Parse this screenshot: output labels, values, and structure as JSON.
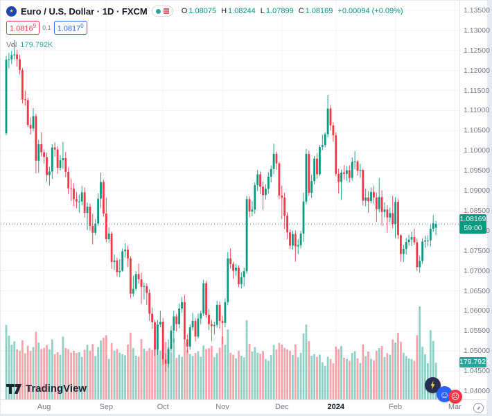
{
  "header": {
    "symbol_title": "Euro / U.S. Dollar · 1D · FXCM",
    "o_label": "O",
    "o": "1.08075",
    "h_label": "H",
    "h": "1.08244",
    "l_label": "L",
    "l": "1.07899",
    "c_label": "C",
    "c": "1.08169",
    "change": "+0.00094 (+0.09%)",
    "bid": "1.0816",
    "bid_sup": "9",
    "spread": "0.1",
    "ask": "1.0817",
    "ask_sup": "0",
    "vol_label": "Vol",
    "vol_value": "179.792K"
  },
  "price_line": {
    "value": "1.08169",
    "countdown": "59:00"
  },
  "volume_tag": {
    "label": "179.792K"
  },
  "logo": {
    "text": "TradingView"
  },
  "colors": {
    "up": "#089981",
    "down": "#f23645",
    "vol_up": "rgba(8,153,129,0.45)",
    "vol_down": "rgba(242,54,69,0.45)",
    "grid": "#f0f3fa",
    "axis_text": "#787b86",
    "accent_blue": "#2962ff"
  },
  "price_scale": {
    "labels": [
      "1.13500",
      "1.13000",
      "1.12500",
      "1.12000",
      "1.11500",
      "1.11000",
      "1.10500",
      "1.10000",
      "1.09500",
      "1.09000",
      "1.08500",
      "1.08000",
      "1.07500",
      "1.07000",
      "1.06500",
      "1.06000",
      "1.05500",
      "1.05000",
      "1.04500",
      "1.04000"
    ]
  },
  "time_scale": {
    "labels": [
      {
        "text": "Aug",
        "index": 14,
        "major": false
      },
      {
        "text": "Sep",
        "index": 37,
        "major": false
      },
      {
        "text": "Oct",
        "index": 58,
        "major": false
      },
      {
        "text": "Nov",
        "index": 80,
        "major": false
      },
      {
        "text": "Dec",
        "index": 102,
        "major": false
      },
      {
        "text": "2024",
        "index": 122,
        "major": true
      },
      {
        "text": "Feb",
        "index": 144,
        "major": false
      },
      {
        "text": "Mar",
        "index": 166,
        "major": false
      }
    ]
  },
  "chart_data": {
    "type": "candlestick",
    "symbol": "Euro / U.S. Dollar",
    "interval": "1D",
    "exchange": "FXCM",
    "title": "Euro / U.S. Dollar · 1D · FXCM",
    "y_range": [
      1.04,
      1.135
    ],
    "grid": true,
    "last_close": 1.08169,
    "volume_unit": "K",
    "bars_format": [
      "open",
      "high",
      "low",
      "close",
      "volume_K"
    ],
    "bars": [
      [
        1.1043,
        1.1236,
        1.1038,
        1.1227,
        365
      ],
      [
        1.1227,
        1.1244,
        1.1205,
        1.1228,
        312
      ],
      [
        1.1228,
        1.1249,
        1.1216,
        1.1238,
        268
      ],
      [
        1.1238,
        1.1276,
        1.1228,
        1.124,
        284
      ],
      [
        1.124,
        1.1252,
        1.121,
        1.1228,
        245
      ],
      [
        1.1228,
        1.124,
        1.119,
        1.1201,
        238
      ],
      [
        1.1201,
        1.1206,
        1.1118,
        1.1128,
        289
      ],
      [
        1.1128,
        1.115,
        1.1112,
        1.1126,
        226
      ],
      [
        1.1126,
        1.1132,
        1.1059,
        1.1064,
        263
      ],
      [
        1.1064,
        1.1083,
        1.104,
        1.1055,
        237
      ],
      [
        1.1055,
        1.1106,
        1.1048,
        1.1086,
        256
      ],
      [
        1.1086,
        1.1092,
        1.0943,
        1.0975,
        331
      ],
      [
        1.0975,
        1.1027,
        1.0944,
        1.1016,
        278
      ],
      [
        1.1016,
        1.1046,
        1.0985,
        1.0996,
        247
      ],
      [
        1.0996,
        1.1003,
        1.0967,
        1.0984,
        252
      ],
      [
        1.0984,
        1.0995,
        1.0923,
        1.0939,
        266
      ],
      [
        1.0939,
        1.096,
        1.0913,
        1.0948,
        244
      ],
      [
        1.0948,
        1.1016,
        1.093,
        1.1008,
        294
      ],
      [
        1.1008,
        1.1021,
        1.0985,
        1.1003,
        222
      ],
      [
        1.1003,
        1.1011,
        1.0942,
        1.0957,
        231
      ],
      [
        1.0957,
        1.0989,
        1.095,
        1.0976,
        219
      ],
      [
        1.0976,
        1.1021,
        1.0955,
        1.0981,
        308
      ],
      [
        1.0981,
        1.0997,
        1.0934,
        1.0947,
        251
      ],
      [
        1.0947,
        1.0958,
        1.0891,
        1.0906,
        246
      ],
      [
        1.0906,
        1.093,
        1.0874,
        1.0905,
        229
      ],
      [
        1.0905,
        1.0918,
        1.0862,
        1.0879,
        238
      ],
      [
        1.0879,
        1.0897,
        1.0856,
        1.0873,
        227
      ],
      [
        1.0873,
        1.089,
        1.0845,
        1.0873,
        231
      ],
      [
        1.0873,
        1.0912,
        1.0863,
        1.0896,
        208
      ],
      [
        1.0896,
        1.0908,
        1.0833,
        1.0845,
        243
      ],
      [
        1.0845,
        1.0871,
        1.0802,
        1.086,
        267
      ],
      [
        1.086,
        1.0868,
        1.08,
        1.0812,
        238
      ],
      [
        1.0812,
        1.0842,
        1.0766,
        1.0795,
        270
      ],
      [
        1.0795,
        1.0829,
        1.0789,
        1.0818,
        212
      ],
      [
        1.0818,
        1.0893,
        1.0812,
        1.088,
        256
      ],
      [
        1.088,
        1.0945,
        1.0856,
        1.0922,
        288
      ],
      [
        1.0922,
        1.0928,
        1.0835,
        1.0843,
        301
      ],
      [
        1.0843,
        1.0882,
        1.0772,
        1.0779,
        314
      ],
      [
        1.0779,
        1.0808,
        1.077,
        1.0793,
        198
      ],
      [
        1.0793,
        1.0798,
        1.0705,
        1.0722,
        276
      ],
      [
        1.0722,
        1.0741,
        1.0702,
        1.0726,
        238
      ],
      [
        1.0726,
        1.0733,
        1.0686,
        1.0697,
        247
      ],
      [
        1.0697,
        1.0729,
        1.0684,
        1.07,
        229
      ],
      [
        1.07,
        1.0756,
        1.0698,
        1.0749,
        221
      ],
      [
        1.0749,
        1.0769,
        1.0733,
        1.0753,
        216
      ],
      [
        1.0753,
        1.0763,
        1.0709,
        1.0731,
        268
      ],
      [
        1.0731,
        1.0736,
        1.0632,
        1.0643,
        327
      ],
      [
        1.0643,
        1.0688,
        1.0636,
        1.0655,
        252
      ],
      [
        1.0655,
        1.0699,
        1.065,
        1.0692,
        214
      ],
      [
        1.0692,
        1.0718,
        1.0668,
        1.0679,
        209
      ],
      [
        1.0679,
        1.0695,
        1.0617,
        1.066,
        295
      ],
      [
        1.066,
        1.0671,
        1.0629,
        1.0662,
        248
      ],
      [
        1.0662,
        1.0669,
        1.0615,
        1.0645,
        237
      ],
      [
        1.0645,
        1.0654,
        1.0575,
        1.0593,
        251
      ],
      [
        1.0593,
        1.0609,
        1.0555,
        1.0572,
        242
      ],
      [
        1.0572,
        1.0578,
        1.0488,
        1.0504,
        283
      ],
      [
        1.0504,
        1.0578,
        1.049,
        1.0566,
        266
      ],
      [
        1.0566,
        1.0601,
        1.0559,
        1.0573,
        239
      ],
      [
        1.0573,
        1.0582,
        1.0465,
        1.0479,
        272
      ],
      [
        1.0479,
        1.0494,
        1.0448,
        1.0468,
        281
      ],
      [
        1.0468,
        1.0529,
        1.0459,
        1.0505,
        256
      ],
      [
        1.0505,
        1.0563,
        1.0499,
        1.0551,
        232
      ],
      [
        1.0551,
        1.0601,
        1.0521,
        1.0586,
        298
      ],
      [
        1.0586,
        1.0592,
        1.0549,
        1.0567,
        203
      ],
      [
        1.0567,
        1.0619,
        1.0557,
        1.0606,
        219
      ],
      [
        1.0606,
        1.0634,
        1.0595,
        1.0622,
        208
      ],
      [
        1.0622,
        1.064,
        1.0519,
        1.0529,
        277
      ],
      [
        1.0529,
        1.0541,
        1.0495,
        1.0511,
        243
      ],
      [
        1.0511,
        1.0567,
        1.0503,
        1.0559,
        221
      ],
      [
        1.0559,
        1.0595,
        1.0551,
        1.0575,
        213
      ],
      [
        1.0575,
        1.0582,
        1.0524,
        1.0536,
        228
      ],
      [
        1.0536,
        1.0593,
        1.0531,
        1.0581,
        236
      ],
      [
        1.0581,
        1.0601,
        1.0567,
        1.0594,
        209
      ],
      [
        1.0594,
        1.0678,
        1.0587,
        1.0669,
        264
      ],
      [
        1.0669,
        1.0675,
        1.0582,
        1.059,
        246
      ],
      [
        1.059,
        1.0605,
        1.0552,
        1.0567,
        251
      ],
      [
        1.0567,
        1.0578,
        1.0524,
        1.0562,
        262
      ],
      [
        1.0562,
        1.0573,
        1.0541,
        1.0565,
        207
      ],
      [
        1.0565,
        1.0625,
        1.0558,
        1.0615,
        227
      ],
      [
        1.0615,
        1.0623,
        1.0556,
        1.0575,
        253
      ],
      [
        1.0575,
        1.0588,
        1.0517,
        1.057,
        309
      ],
      [
        1.057,
        1.0631,
        1.0559,
        1.0622,
        267
      ],
      [
        1.0622,
        1.0747,
        1.0614,
        1.0731,
        342
      ],
      [
        1.0731,
        1.0756,
        1.0706,
        1.0717,
        228
      ],
      [
        1.0717,
        1.0723,
        1.068,
        1.07,
        219
      ],
      [
        1.07,
        1.0717,
        1.0688,
        1.0708,
        201
      ],
      [
        1.0708,
        1.0714,
        1.0659,
        1.0667,
        238
      ],
      [
        1.0667,
        1.0696,
        1.0656,
        1.0684,
        214
      ],
      [
        1.0684,
        1.0708,
        1.0661,
        1.0699,
        206
      ],
      [
        1.0699,
        1.0887,
        1.0693,
        1.0879,
        388
      ],
      [
        1.0879,
        1.0886,
        1.0833,
        1.0848,
        272
      ],
      [
        1.0848,
        1.0874,
        1.0836,
        1.0853,
        234
      ],
      [
        1.0853,
        1.0921,
        1.0842,
        1.0914,
        256
      ],
      [
        1.0914,
        1.0952,
        1.0899,
        1.0941,
        229
      ],
      [
        1.0941,
        1.0948,
        1.0891,
        1.091,
        223
      ],
      [
        1.091,
        1.0923,
        1.0852,
        1.0889,
        237
      ],
      [
        1.0889,
        1.0916,
        1.0878,
        1.0905,
        198
      ],
      [
        1.0905,
        1.0946,
        1.0893,
        1.0935,
        189
      ],
      [
        1.0935,
        1.0963,
        1.0921,
        1.0954,
        218
      ],
      [
        1.0954,
        1.1017,
        1.0941,
        1.0992,
        267
      ],
      [
        1.0992,
        1.0998,
        1.0952,
        1.0968,
        244
      ],
      [
        1.0968,
        1.0972,
        1.0879,
        1.0888,
        276
      ],
      [
        1.0888,
        1.0913,
        1.0829,
        1.0883,
        268
      ],
      [
        1.0883,
        1.0895,
        1.0804,
        1.0838,
        252
      ],
      [
        1.0838,
        1.0846,
        1.0779,
        1.0796,
        245
      ],
      [
        1.0796,
        1.0804,
        1.0755,
        1.0763,
        238
      ],
      [
        1.0763,
        1.08,
        1.0753,
        1.0792,
        217
      ],
      [
        1.0792,
        1.0801,
        1.0723,
        1.0761,
        269
      ],
      [
        1.0761,
        1.0779,
        1.0742,
        1.0764,
        206
      ],
      [
        1.0764,
        1.08,
        1.0756,
        1.0793,
        228
      ],
      [
        1.0793,
        1.0895,
        1.0772,
        1.0873,
        323
      ],
      [
        1.0873,
        1.1004,
        1.0866,
        1.0992,
        366
      ],
      [
        1.0992,
        1.1,
        1.0887,
        1.0895,
        285
      ],
      [
        1.0895,
        1.094,
        1.0882,
        1.0924,
        214
      ],
      [
        1.0924,
        1.0987,
        1.0916,
        1.098,
        221
      ],
      [
        1.098,
        1.0994,
        1.093,
        1.0941,
        208
      ],
      [
        1.0941,
        1.1014,
        1.0936,
        1.1009,
        219
      ],
      [
        1.1009,
        1.104,
        1.1001,
        1.1014,
        182
      ],
      [
        1.1014,
        1.1046,
        1.1008,
        1.1041,
        164
      ],
      [
        1.1041,
        1.1139,
        1.1033,
        1.1105,
        209
      ],
      [
        1.1105,
        1.1114,
        1.105,
        1.1063,
        198
      ],
      [
        1.1063,
        1.1071,
        1.1022,
        1.1038,
        176
      ],
      [
        1.1038,
        1.1046,
        1.0936,
        1.0942,
        258
      ],
      [
        1.0942,
        1.0955,
        1.0893,
        1.0922,
        246
      ],
      [
        1.0922,
        1.0953,
        1.0877,
        1.0945,
        262
      ],
      [
        1.0945,
        1.0964,
        1.0928,
        1.0942,
        204
      ],
      [
        1.0942,
        1.0961,
        1.0924,
        1.0951,
        198
      ],
      [
        1.0951,
        1.0963,
        1.0921,
        1.0932,
        189
      ],
      [
        1.0932,
        1.0983,
        1.0926,
        1.0972,
        227
      ],
      [
        1.0972,
        1.0999,
        1.0953,
        1.0973,
        236
      ],
      [
        1.0973,
        1.0976,
        1.0938,
        1.095,
        201
      ],
      [
        1.095,
        1.0967,
        1.0932,
        1.0952,
        178
      ],
      [
        1.0952,
        1.0955,
        1.0863,
        1.0875,
        269
      ],
      [
        1.0875,
        1.0905,
        1.0861,
        1.0883,
        212
      ],
      [
        1.0883,
        1.0899,
        1.0845,
        1.0874,
        234
      ],
      [
        1.0874,
        1.0908,
        1.0868,
        1.0897,
        199
      ],
      [
        1.0897,
        1.0913,
        1.0867,
        1.0883,
        191
      ],
      [
        1.0883,
        1.0895,
        1.0822,
        1.0854,
        238
      ],
      [
        1.0854,
        1.0932,
        1.0846,
        1.0884,
        251
      ],
      [
        1.0884,
        1.0901,
        1.0812,
        1.0847,
        262
      ],
      [
        1.0847,
        1.0871,
        1.0833,
        1.0853,
        207
      ],
      [
        1.0853,
        1.0864,
        1.0795,
        1.0833,
        226
      ],
      [
        1.0833,
        1.0858,
        1.0821,
        1.0844,
        219
      ],
      [
        1.0844,
        1.0887,
        1.0806,
        1.0817,
        293
      ],
      [
        1.0817,
        1.0884,
        1.0781,
        1.0872,
        278
      ],
      [
        1.0872,
        1.0879,
        1.078,
        1.0789,
        326
      ],
      [
        1.0789,
        1.0791,
        1.0723,
        1.0742,
        282
      ],
      [
        1.0742,
        1.0765,
        1.0722,
        1.0755,
        228
      ],
      [
        1.0755,
        1.0782,
        1.0741,
        1.0772,
        212
      ],
      [
        1.0772,
        1.079,
        1.0763,
        1.0778,
        201
      ],
      [
        1.0778,
        1.0798,
        1.0762,
        1.0784,
        198
      ],
      [
        1.0784,
        1.0805,
        1.0765,
        1.0771,
        189
      ],
      [
        1.0771,
        1.0781,
        1.07,
        1.0709,
        314
      ],
      [
        1.0709,
        1.0737,
        1.0695,
        1.0725,
        455
      ],
      [
        1.0725,
        1.0781,
        1.0718,
        1.0773,
        257
      ],
      [
        1.0773,
        1.0788,
        1.0758,
        1.0776,
        221
      ],
      [
        1.0776,
        1.0789,
        1.0761,
        1.0776,
        177
      ],
      [
        1.0776,
        1.0815,
        1.0761,
        1.0805,
        338
      ],
      [
        1.0805,
        1.0839,
        1.0797,
        1.0819,
        286
      ],
      [
        1.08075,
        1.08244,
        1.07899,
        1.08169,
        179.792
      ]
    ]
  }
}
